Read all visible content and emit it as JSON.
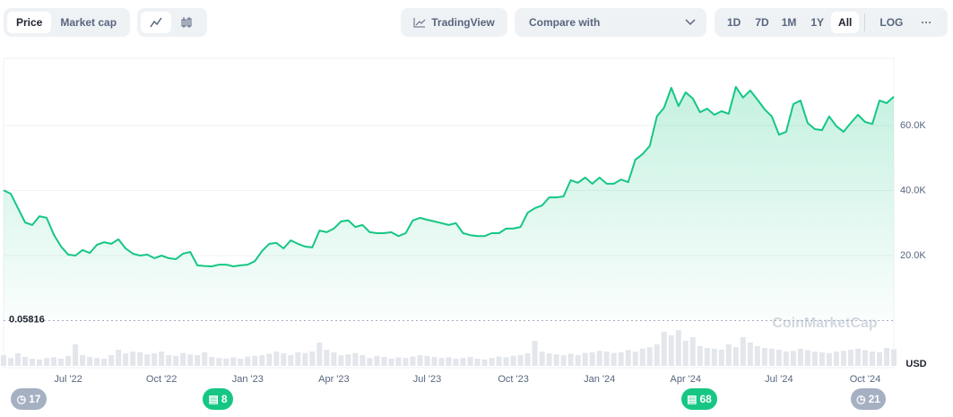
{
  "ui": {
    "tabs": [
      "Price",
      "Market cap"
    ],
    "tradingview": "TradingView",
    "compare": "Compare with",
    "ranges": [
      "1D",
      "7D",
      "1M",
      "1Y",
      "All"
    ],
    "log": "LOG",
    "more": "···",
    "events": [
      17,
      8,
      68,
      21
    ]
  },
  "chart_data": {
    "type": "line",
    "color": "#16c784",
    "currency": "USD",
    "watermark": "CoinMarketCap",
    "baseline": 0.05816,
    "categories": [
      null,
      null,
      null,
      null,
      null,
      null,
      null,
      null,
      null,
      "Jul '22",
      null,
      null,
      null,
      null,
      null,
      null,
      null,
      null,
      null,
      null,
      null,
      null,
      "Oct '22",
      null,
      null,
      null,
      null,
      null,
      null,
      null,
      null,
      null,
      null,
      null,
      "Jan '23",
      null,
      null,
      null,
      null,
      null,
      null,
      null,
      null,
      null,
      null,
      null,
      "Apr '23",
      null,
      null,
      null,
      null,
      null,
      null,
      null,
      null,
      null,
      null,
      null,
      null,
      "Jul '23",
      null,
      null,
      null,
      null,
      null,
      null,
      null,
      null,
      null,
      null,
      null,
      "Oct '23",
      null,
      null,
      null,
      null,
      null,
      null,
      null,
      null,
      null,
      null,
      null,
      "Jan '24",
      null,
      null,
      null,
      null,
      null,
      null,
      null,
      null,
      null,
      null,
      null,
      "Apr '24",
      null,
      null,
      null,
      null,
      null,
      null,
      null,
      null,
      null,
      null,
      null,
      null,
      "Jul '24",
      null,
      null,
      null,
      null,
      null,
      null,
      null,
      null,
      null,
      null,
      null,
      "Oct '24",
      null,
      null,
      null,
      null
    ],
    "values": [
      40100,
      39000,
      34600,
      30200,
      29400,
      32100,
      31600,
      26400,
      22800,
      20300,
      20000,
      21700,
      20800,
      23300,
      24100,
      23600,
      25000,
      22200,
      20600,
      20000,
      20300,
      19200,
      20000,
      19200,
      18900,
      20600,
      21100,
      17000,
      16800,
      16700,
      17200,
      17200,
      16700,
      17000,
      17200,
      18300,
      21400,
      23600,
      23900,
      22200,
      24700,
      23600,
      22800,
      22500,
      27700,
      27200,
      28300,
      30500,
      30800,
      28800,
      29400,
      27200,
      26900,
      26900,
      27200,
      26000,
      26900,
      30800,
      31600,
      31000,
      30500,
      30000,
      29400,
      30000,
      26900,
      26300,
      26000,
      26000,
      26900,
      26900,
      28300,
      28300,
      28800,
      33200,
      34600,
      35400,
      37900,
      37900,
      38200,
      43200,
      42400,
      44000,
      42100,
      44000,
      42100,
      42100,
      43400,
      42600,
      49500,
      51200,
      53700,
      62800,
      65500,
      71600,
      66000,
      70200,
      68300,
      64100,
      65200,
      63300,
      64400,
      63600,
      71900,
      68600,
      70800,
      68000,
      65000,
      62800,
      57200,
      58100,
      66600,
      67700,
      60800,
      58900,
      58600,
      62800,
      59800,
      58100,
      60800,
      63300,
      61100,
      60500,
      67700,
      66900,
      68900
    ],
    "volume": [
      30,
      22,
      35,
      25,
      20,
      18,
      22,
      24,
      20,
      28,
      60,
      30,
      25,
      22,
      20,
      30,
      45,
      35,
      40,
      38,
      32,
      35,
      40,
      30,
      28,
      36,
      32,
      30,
      38,
      25,
      22,
      20,
      24,
      20,
      26,
      28,
      30,
      34,
      40,
      35,
      30,
      38,
      36,
      40,
      65,
      45,
      38,
      30,
      32,
      36,
      30,
      22,
      28,
      25,
      20,
      24,
      22,
      26,
      30,
      28,
      25,
      22,
      24,
      20,
      22,
      25,
      20,
      18,
      22,
      26,
      24,
      28,
      30,
      35,
      70,
      40,
      35,
      32,
      30,
      34,
      30,
      36,
      38,
      42,
      40,
      36,
      38,
      44,
      40,
      48,
      52,
      60,
      95,
      85,
      100,
      70,
      80,
      55,
      50,
      48,
      45,
      60,
      52,
      80,
      65,
      55,
      50,
      48,
      45,
      40,
      42,
      48,
      44,
      40,
      38,
      36,
      40,
      42,
      45,
      48,
      44,
      40,
      38,
      50,
      46
    ],
    "volume_lim": [
      0,
      100
    ],
    "ylim": [
      0,
      80000
    ],
    "yticks": [
      {
        "value": 20000,
        "label": "20.0K"
      },
      {
        "value": 40000,
        "label": "40.0K"
      },
      {
        "value": 60000,
        "label": "60.0K"
      }
    ],
    "grid": true
  }
}
